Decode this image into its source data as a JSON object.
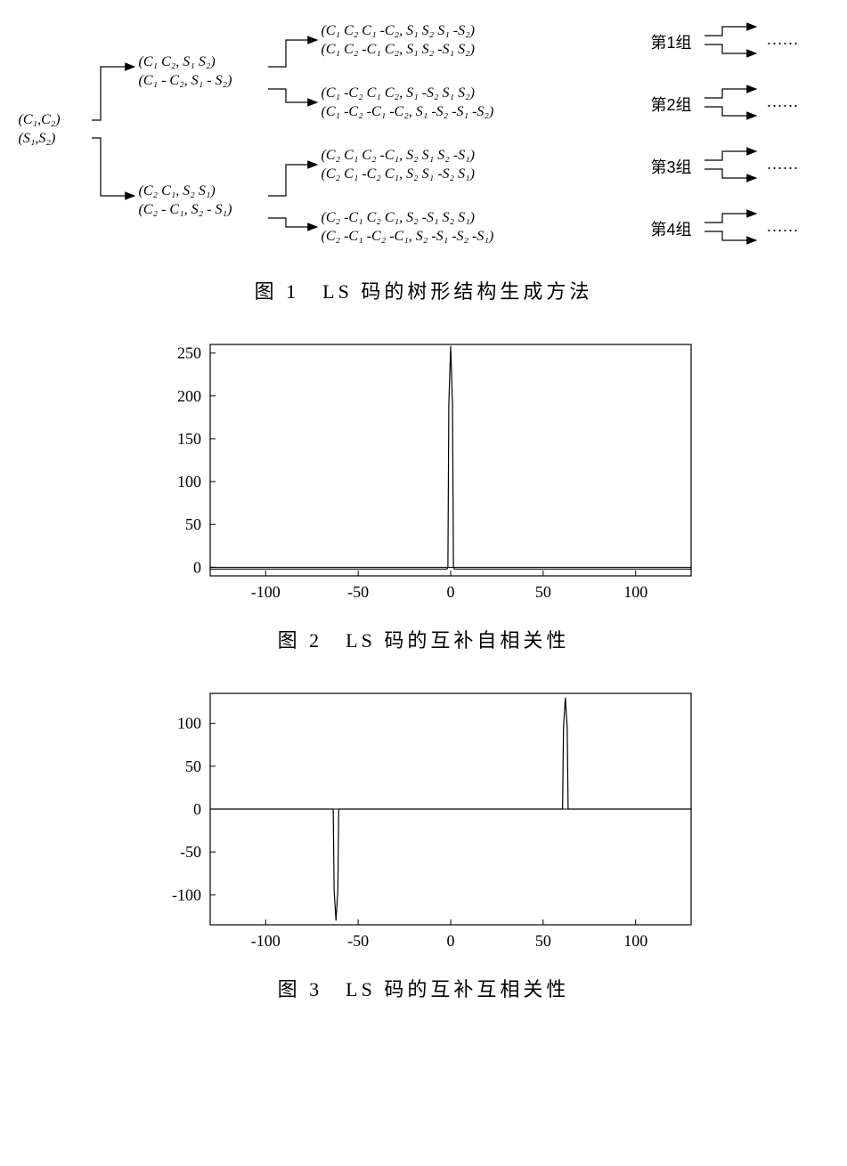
{
  "fig1": {
    "caption": "图 1　LS 码的树形结构生成方法",
    "root": {
      "line1": "(C₁,C₂)",
      "line2": "(S₁,S₂)"
    },
    "level2_top": {
      "line1": "(C₁ C₂, S₁ S₂)",
      "line2": "(C₁ - C₂, S₁ - S₂)"
    },
    "level2_bot": {
      "line1": "(C₂ C₁, S₂ S₁)",
      "line2": "(C₂ - C₁, S₂ - S₁)"
    },
    "leaves": [
      {
        "line1": "(C₁ C₂ C₁ -C₂, S₁ S₂ S₁ -S₂)",
        "line2": "(C₁ C₂ -C₁ C₂, S₁ S₂ -S₁ S₂)"
      },
      {
        "line1": "(C₁ -C₂ C₁ C₂, S₁ -S₂ S₁ S₂)",
        "line2": "(C₁ -C₂ -C₁ -C₂, S₁ -S₂ -S₁ -S₂)"
      },
      {
        "line1": "(C₂ C₁ C₂ -C₁, S₂ S₁ S₂ -S₁)",
        "line2": "(C₂ C₁ -C₂ C₁, S₂ S₁ -S₂ S₁)"
      },
      {
        "line1": "(C₂ -C₁ C₂ C₁, S₂ -S₁ S₂ S₁)",
        "line2": "(C₂ -C₁ -C₂ -C₁, S₂ -S₁ -S₂ -S₁)"
      }
    ],
    "groups": [
      "第1组",
      "第2组",
      "第3组",
      "第4组"
    ],
    "ellipsis": "……"
  },
  "fig2": {
    "caption": "图 2　LS 码的互补自相关性",
    "type": "line",
    "xlim": [
      -130,
      130
    ],
    "ylim": [
      -10,
      260
    ],
    "xticks": [
      -100,
      -50,
      0,
      50,
      100
    ],
    "yticks": [
      0,
      50,
      100,
      150,
      200,
      250
    ],
    "background_color": "#ffffff",
    "line_color": "#000000",
    "line_width": 1.2,
    "series": {
      "x": [
        -130,
        -2,
        -1.5,
        -1,
        0,
        1,
        1.5,
        2,
        130
      ],
      "y": [
        -2,
        -2,
        0,
        190,
        258,
        190,
        0,
        -2,
        -2
      ]
    }
  },
  "fig3": {
    "caption": "图 3　LS 码的互补互相关性",
    "type": "line",
    "xlim": [
      -130,
      130
    ],
    "ylim": [
      -135,
      135
    ],
    "xticks": [
      -100,
      -50,
      0,
      50,
      100
    ],
    "yticks": [
      -100,
      -50,
      0,
      50,
      100
    ],
    "background_color": "#ffffff",
    "line_color": "#000000",
    "line_width": 1.2,
    "series": {
      "x": [
        -130,
        -64,
        -63.5,
        -63,
        -62,
        -61,
        -60.5,
        -60,
        60,
        60.5,
        61,
        62,
        63,
        63.5,
        64,
        130
      ],
      "y": [
        0,
        0,
        0,
        -95,
        -130,
        -95,
        0,
        0,
        0,
        0,
        95,
        130,
        95,
        0,
        0,
        0
      ]
    }
  }
}
